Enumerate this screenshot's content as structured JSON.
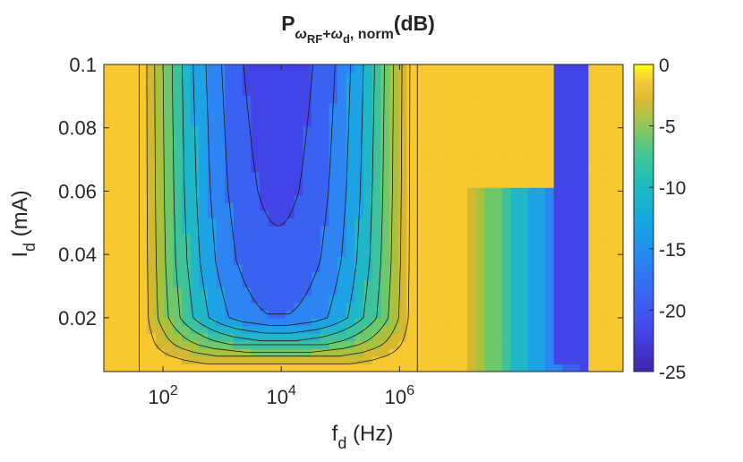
{
  "chart_data": {
    "type": "contour",
    "title": {
      "base": "P",
      "sub_omega": "ω",
      "sub_rf": "RF",
      "sub_plus": "+",
      "sub_omega2": "ω",
      "sub_d": "d",
      "sub_norm": ", norm",
      "suffix": "(dB)"
    },
    "xlabel": {
      "base": "f",
      "sub": "d",
      "rest": " (Hz)"
    },
    "ylabel": {
      "base": "I",
      "sub": "d",
      "rest": " (mA)"
    },
    "x_scale": "log",
    "xlim": [
      10,
      6000000000
    ],
    "ylim": [
      0.003,
      0.1
    ],
    "x_ticks": [
      {
        "value": 100,
        "base": "10",
        "exp": "2"
      },
      {
        "value": 10000,
        "base": "10",
        "exp": "4"
      },
      {
        "value": 1000000,
        "base": "10",
        "exp": "6"
      }
    ],
    "y_ticks": [
      {
        "value": 0.1,
        "label": "0.1"
      },
      {
        "value": 0.08,
        "label": "0.08"
      },
      {
        "value": 0.06,
        "label": "0.06"
      },
      {
        "value": 0.04,
        "label": "0.04"
      },
      {
        "value": 0.02,
        "label": "0.02"
      }
    ],
    "colorbar": {
      "limits": [
        -25,
        0
      ],
      "ticks": [
        {
          "value": 0,
          "label": "0"
        },
        {
          "value": -5,
          "label": "-5"
        },
        {
          "value": -10,
          "label": "-10"
        },
        {
          "value": -15,
          "label": "-15"
        },
        {
          "value": -20,
          "label": "-20"
        },
        {
          "value": -25,
          "label": "-25"
        }
      ],
      "colormap": "parula"
    },
    "level_colors": [
      "#3c30c8",
      "#4244e8",
      "#3a62f0",
      "#2d84f2",
      "#1ea2e6",
      "#20b8c8",
      "#3ec29c",
      "#6cc86a",
      "#a8c23e",
      "#d4b830",
      "#f8c830",
      "#f9fb15"
    ],
    "contour_levels_dB": [
      -22.5,
      -20,
      -17.5,
      -15,
      -12.5,
      -10,
      -7.5,
      -5,
      -2.5,
      0
    ],
    "valley": {
      "center_log10_f": 3.95,
      "deep_half_width_decades": 0.55,
      "deep_top_mA": 0.1,
      "deep_bottom_mA": 0.038,
      "floor_by_current": [
        {
          "I_mA": 0.1,
          "value_dB": -24
        },
        {
          "I_mA": 0.06,
          "value_dB": -23
        },
        {
          "I_mA": 0.038,
          "value_dB": -22
        },
        {
          "I_mA": 0.02,
          "value_dB": -20
        },
        {
          "I_mA": 0.012,
          "value_dB": -12
        },
        {
          "I_mA": 0.007,
          "value_dB": -5
        },
        {
          "I_mA": 0.004,
          "value_dB": -2
        }
      ]
    },
    "high_freq_region": {
      "start_log10_f": 7.1,
      "end_log10_f": 9.2,
      "lowest_dB": -24
    }
  }
}
